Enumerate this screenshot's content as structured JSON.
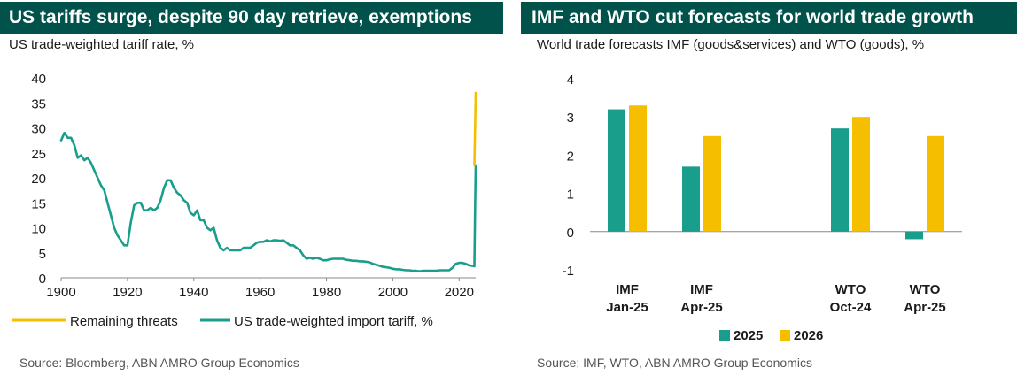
{
  "left_panel": {
    "title": "US tariffs surge, despite 90 day retrieve, exemptions",
    "subtitle": "US trade-weighted tariff rate, %",
    "source": "Source: Bloomberg, ABN AMRO Group Economics"
  },
  "right_panel": {
    "title": "IMF and WTO cut forecasts for world trade growth",
    "subtitle": "World trade forecasts IMF (goods&services) and WTO (goods), %",
    "source": "Source: IMF, WTO, ABN AMRO Group Economics"
  },
  "colors": {
    "title_bar": "#00524b",
    "teal": "#1a9e8c",
    "yellow": "#f5bf00"
  },
  "chart_data": [
    {
      "type": "line",
      "title": "US tariffs surge, despite 90 day retrieve, exemptions",
      "ylabel": "US trade-weighted tariff rate, %",
      "xlim": [
        1900,
        2025
      ],
      "ylim": [
        0,
        40
      ],
      "x_ticks": [
        "1900",
        "1920",
        "1940",
        "1960",
        "1980",
        "2000",
        "2020"
      ],
      "y_ticks": [
        "0",
        "5",
        "10",
        "15",
        "20",
        "25",
        "30",
        "35",
        "40"
      ],
      "grid": false,
      "legend_position": "bottom",
      "series": [
        {
          "name": "Remaining threats",
          "color": "#f5bf00",
          "points": [
            [
              2024.6,
              22.5
            ],
            [
              2024.8,
              30
            ],
            [
              2025.0,
              37
            ]
          ]
        },
        {
          "name": "US trade-weighted import tariff, %",
          "color": "#1a9e8c",
          "points": [
            [
              1900,
              27.5
            ],
            [
              1901,
              29
            ],
            [
              1902,
              28
            ],
            [
              1903,
              28
            ],
            [
              1904,
              26.5
            ],
            [
              1905,
              24
            ],
            [
              1906,
              24.5
            ],
            [
              1907,
              23.5
            ],
            [
              1908,
              24
            ],
            [
              1909,
              23
            ],
            [
              1910,
              21.5
            ],
            [
              1911,
              20
            ],
            [
              1912,
              18.5
            ],
            [
              1913,
              17.5
            ],
            [
              1914,
              15
            ],
            [
              1915,
              12.5
            ],
            [
              1916,
              10
            ],
            [
              1917,
              8.5
            ],
            [
              1918,
              7.5
            ],
            [
              1919,
              6.5
            ],
            [
              1920,
              6.5
            ],
            [
              1921,
              11
            ],
            [
              1922,
              14.5
            ],
            [
              1923,
              15
            ],
            [
              1924,
              15
            ],
            [
              1925,
              13.5
            ],
            [
              1926,
              13.5
            ],
            [
              1927,
              14
            ],
            [
              1928,
              13.5
            ],
            [
              1929,
              14
            ],
            [
              1930,
              15.5
            ],
            [
              1931,
              18
            ],
            [
              1932,
              19.5
            ],
            [
              1933,
              19.5
            ],
            [
              1934,
              18
            ],
            [
              1935,
              17
            ],
            [
              1936,
              16.5
            ],
            [
              1937,
              15.5
            ],
            [
              1938,
              15
            ],
            [
              1939,
              13
            ],
            [
              1940,
              12.5
            ],
            [
              1941,
              13.5
            ],
            [
              1942,
              11.5
            ],
            [
              1943,
              11.5
            ],
            [
              1944,
              10
            ],
            [
              1945,
              9.5
            ],
            [
              1946,
              10
            ],
            [
              1947,
              7.5
            ],
            [
              1948,
              6
            ],
            [
              1949,
              5.5
            ],
            [
              1950,
              6
            ],
            [
              1951,
              5.5
            ],
            [
              1952,
              5.5
            ],
            [
              1953,
              5.5
            ],
            [
              1954,
              5.5
            ],
            [
              1955,
              6
            ],
            [
              1956,
              6
            ],
            [
              1957,
              6
            ],
            [
              1958,
              6.5
            ],
            [
              1959,
              7
            ],
            [
              1960,
              7.2
            ],
            [
              1961,
              7.2
            ],
            [
              1962,
              7.5
            ],
            [
              1963,
              7.3
            ],
            [
              1964,
              7.5
            ],
            [
              1965,
              7.5
            ],
            [
              1966,
              7.4
            ],
            [
              1967,
              7.5
            ],
            [
              1968,
              7
            ],
            [
              1969,
              6.5
            ],
            [
              1970,
              6.5
            ],
            [
              1971,
              6
            ],
            [
              1972,
              5.5
            ],
            [
              1973,
              4.5
            ],
            [
              1974,
              3.8
            ],
            [
              1975,
              4
            ],
            [
              1976,
              3.8
            ],
            [
              1977,
              4
            ],
            [
              1978,
              3.8
            ],
            [
              1979,
              3.5
            ],
            [
              1980,
              3.5
            ],
            [
              1981,
              3.7
            ],
            [
              1982,
              3.8
            ],
            [
              1983,
              3.8
            ],
            [
              1984,
              3.8
            ],
            [
              1985,
              3.8
            ],
            [
              1986,
              3.6
            ],
            [
              1987,
              3.5
            ],
            [
              1988,
              3.4
            ],
            [
              1989,
              3.4
            ],
            [
              1990,
              3.3
            ],
            [
              1991,
              3.3
            ],
            [
              1992,
              3.2
            ],
            [
              1993,
              3.1
            ],
            [
              1994,
              2.8
            ],
            [
              1995,
              2.6
            ],
            [
              1996,
              2.4
            ],
            [
              1997,
              2.2
            ],
            [
              1998,
              2.1
            ],
            [
              1999,
              2
            ],
            [
              2000,
              1.8
            ],
            [
              2001,
              1.7
            ],
            [
              2002,
              1.7
            ],
            [
              2003,
              1.6
            ],
            [
              2004,
              1.5
            ],
            [
              2005,
              1.5
            ],
            [
              2006,
              1.4
            ],
            [
              2007,
              1.4
            ],
            [
              2008,
              1.3
            ],
            [
              2009,
              1.4
            ],
            [
              2010,
              1.4
            ],
            [
              2011,
              1.4
            ],
            [
              2012,
              1.4
            ],
            [
              2013,
              1.4
            ],
            [
              2014,
              1.5
            ],
            [
              2015,
              1.5
            ],
            [
              2016,
              1.5
            ],
            [
              2017,
              1.5
            ],
            [
              2018,
              2
            ],
            [
              2019,
              2.8
            ],
            [
              2020,
              3
            ],
            [
              2021,
              3
            ],
            [
              2022,
              2.8
            ],
            [
              2023,
              2.5
            ],
            [
              2024,
              2.4
            ],
            [
              2024.6,
              2.3
            ],
            [
              2024.8,
              14
            ],
            [
              2025,
              22.5
            ]
          ]
        }
      ]
    },
    {
      "type": "bar",
      "title": "IMF and WTO cut forecasts for world trade growth",
      "ylabel": "World trade forecasts IMF (goods&services) and WTO (goods), %",
      "categories": [
        [
          "IMF",
          "Jan-25"
        ],
        [
          "IMF",
          "Apr-25"
        ],
        [
          "",
          ""
        ],
        [
          "WTO",
          "Oct-24"
        ],
        [
          "WTO",
          "Apr-25"
        ]
      ],
      "ylim": [
        -1,
        4
      ],
      "y_ticks": [
        "-1",
        "0",
        "1",
        "2",
        "3",
        "4"
      ],
      "grid": false,
      "legend_position": "bottom",
      "series": [
        {
          "name": "2025",
          "color": "#1a9e8c",
          "values": [
            3.2,
            1.7,
            null,
            2.7,
            -0.2
          ]
        },
        {
          "name": "2026",
          "color": "#f5bf00",
          "values": [
            3.3,
            2.5,
            null,
            3.0,
            2.5
          ]
        }
      ]
    }
  ]
}
